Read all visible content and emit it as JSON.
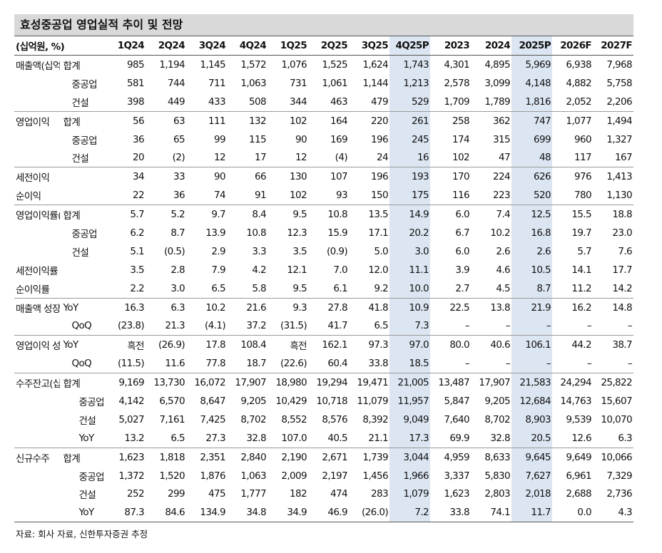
{
  "title": "효성중공업 영업실적 추이 및 전망",
  "unit": "(십억원, %)",
  "columns": [
    "1Q24",
    "2Q24",
    "3Q24",
    "4Q24",
    "1Q25",
    "2Q25",
    "3Q25",
    "4Q25P",
    "2023",
    "2024",
    "2025P",
    "2026F",
    "2027F"
  ],
  "sections": [
    {
      "rows": [
        {
          "label": "매출액(십억원)",
          "sub": "합계",
          "values": [
            "985",
            "1,194",
            "1,145",
            "1,572",
            "1,076",
            "1,525",
            "1,624",
            "1,743",
            "4,301",
            "4,895",
            "5,969",
            "6,938",
            "7,968"
          ]
        },
        {
          "sub": "중공업",
          "values": [
            "581",
            "744",
            "711",
            "1,063",
            "731",
            "1,061",
            "1,144",
            "1,213",
            "2,578",
            "3,099",
            "4,148",
            "4,882",
            "5,758"
          ]
        },
        {
          "sub": "건설",
          "values": [
            "398",
            "449",
            "433",
            "508",
            "344",
            "463",
            "479",
            "529",
            "1,709",
            "1,789",
            "1,816",
            "2,052",
            "2,206"
          ]
        }
      ]
    },
    {
      "rows": [
        {
          "label": "영업이익",
          "sub": "합계",
          "values": [
            "56",
            "63",
            "111",
            "132",
            "102",
            "164",
            "220",
            "261",
            "258",
            "362",
            "747",
            "1,077",
            "1,494"
          ]
        },
        {
          "sub": "중공업",
          "values": [
            "36",
            "65",
            "99",
            "115",
            "90",
            "169",
            "196",
            "245",
            "174",
            "315",
            "699",
            "960",
            "1,327"
          ]
        },
        {
          "sub": "건설",
          "values": [
            "20",
            "(2)",
            "12",
            "17",
            "12",
            "(4)",
            "24",
            "16",
            "102",
            "47",
            "48",
            "117",
            "167"
          ]
        }
      ]
    },
    {
      "rows": [
        {
          "label": "세전이익",
          "values": [
            "34",
            "33",
            "90",
            "66",
            "130",
            "107",
            "196",
            "193",
            "170",
            "224",
            "626",
            "976",
            "1,413"
          ]
        },
        {
          "label": "순이익",
          "values": [
            "22",
            "36",
            "74",
            "91",
            "102",
            "93",
            "150",
            "175",
            "116",
            "223",
            "520",
            "780",
            "1,130"
          ]
        }
      ]
    },
    {
      "rows": [
        {
          "label": "영업이익률(%)",
          "sub": "합계",
          "values": [
            "5.7",
            "5.2",
            "9.7",
            "8.4",
            "9.5",
            "10.8",
            "13.5",
            "14.9",
            "6.0",
            "7.4",
            "12.5",
            "15.5",
            "18.8"
          ]
        },
        {
          "sub": "중공업",
          "values": [
            "6.2",
            "8.7",
            "13.9",
            "10.8",
            "12.3",
            "15.9",
            "17.1",
            "20.2",
            "6.7",
            "10.2",
            "16.8",
            "19.7",
            "23.0"
          ]
        },
        {
          "sub": "건설",
          "values": [
            "5.1",
            "(0.5)",
            "2.9",
            "3.3",
            "3.5",
            "(0.9)",
            "5.0",
            "3.0",
            "6.0",
            "2.6",
            "2.6",
            "5.7",
            "7.6"
          ]
        },
        {
          "label": "세전이익률",
          "values": [
            "3.5",
            "2.8",
            "7.9",
            "4.2",
            "12.1",
            "7.0",
            "12.0",
            "11.1",
            "3.9",
            "4.6",
            "10.5",
            "14.1",
            "17.7"
          ]
        },
        {
          "label": "순이익률",
          "values": [
            "2.2",
            "3.0",
            "6.5",
            "5.8",
            "9.5",
            "6.1",
            "9.2",
            "10.0",
            "2.7",
            "4.5",
            "8.7",
            "11.2",
            "14.2"
          ]
        }
      ]
    },
    {
      "rows": [
        {
          "label": "매출액 성장률",
          "sub": "YoY",
          "values": [
            "16.3",
            "6.3",
            "10.2",
            "21.6",
            "9.3",
            "27.8",
            "41.8",
            "10.9",
            "22.5",
            "13.8",
            "21.9",
            "16.2",
            "14.8"
          ]
        },
        {
          "sub": "QoQ",
          "values": [
            "(23.8)",
            "21.3",
            "(4.1)",
            "37.2",
            "(31.5)",
            "41.7",
            "6.5",
            "7.3",
            "–",
            "–",
            "–",
            "–",
            "–"
          ]
        }
      ]
    },
    {
      "rows": [
        {
          "label": "영업이익 성장률",
          "sub": "YoY",
          "values": [
            "흑전",
            "(26.9)",
            "17.8",
            "108.4",
            "흑전",
            "162.1",
            "97.3",
            "97.0",
            "80.0",
            "40.6",
            "106.1",
            "44.2",
            "38.7"
          ]
        },
        {
          "sub": "QoQ",
          "values": [
            "(11.5)",
            "11.6",
            "77.8",
            "18.7",
            "(22.6)",
            "60.4",
            "33.8",
            "18.5",
            "–",
            "–",
            "–",
            "–",
            "–"
          ]
        }
      ]
    },
    {
      "rows": [
        {
          "label": "수주잔고(십억원)",
          "sub": "합계",
          "values": [
            "9,169",
            "13,730",
            "16,072",
            "17,907",
            "18,980",
            "19,294",
            "19,471",
            "21,005",
            "13,487",
            "17,907",
            "21,583",
            "24,294",
            "25,822"
          ]
        },
        {
          "sub": "중공업",
          "values": [
            "4,142",
            "6,570",
            "8,647",
            "9,205",
            "10,429",
            "10,718",
            "11,079",
            "11,957",
            "5,847",
            "9,205",
            "12,684",
            "14,763",
            "15,607"
          ]
        },
        {
          "sub": "건설",
          "values": [
            "5,027",
            "7,161",
            "7,425",
            "8,702",
            "8,552",
            "8,576",
            "8,392",
            "9,049",
            "7,640",
            "8,702",
            "8,903",
            "9,539",
            "10,070"
          ]
        },
        {
          "sub": "YoY",
          "values": [
            "13.2",
            "6.5",
            "27.3",
            "32.8",
            "107.0",
            "40.5",
            "21.1",
            "17.3",
            "69.9",
            "32.8",
            "20.5",
            "12.6",
            "6.3"
          ]
        }
      ]
    },
    {
      "rows": [
        {
          "label": "신규수주",
          "sub": "합계",
          "values": [
            "1,623",
            "1,818",
            "2,351",
            "2,840",
            "2,190",
            "2,671",
            "1,739",
            "3,044",
            "4,959",
            "8,633",
            "9,645",
            "9,649",
            "10,066"
          ]
        },
        {
          "sub": "중공업",
          "values": [
            "1,372",
            "1,520",
            "1,876",
            "1,063",
            "2,009",
            "2,197",
            "1,456",
            "1,966",
            "3,337",
            "5,830",
            "7,627",
            "6,961",
            "7,329"
          ]
        },
        {
          "sub": "건설",
          "values": [
            "252",
            "299",
            "475",
            "1,777",
            "182",
            "474",
            "283",
            "1,079",
            "1,623",
            "2,803",
            "2,018",
            "2,688",
            "2,736"
          ]
        },
        {
          "sub": "YoY",
          "values": [
            "87.3",
            "84.6",
            "134.9",
            "34.8",
            "34.9",
            "46.9",
            "(26.0)",
            "7.2",
            "33.8",
            "74.1",
            "11.7",
            "0.0",
            "4.3"
          ]
        }
      ]
    }
  ],
  "source": "자료: 회사 자료, 신한투자증권 추정"
}
